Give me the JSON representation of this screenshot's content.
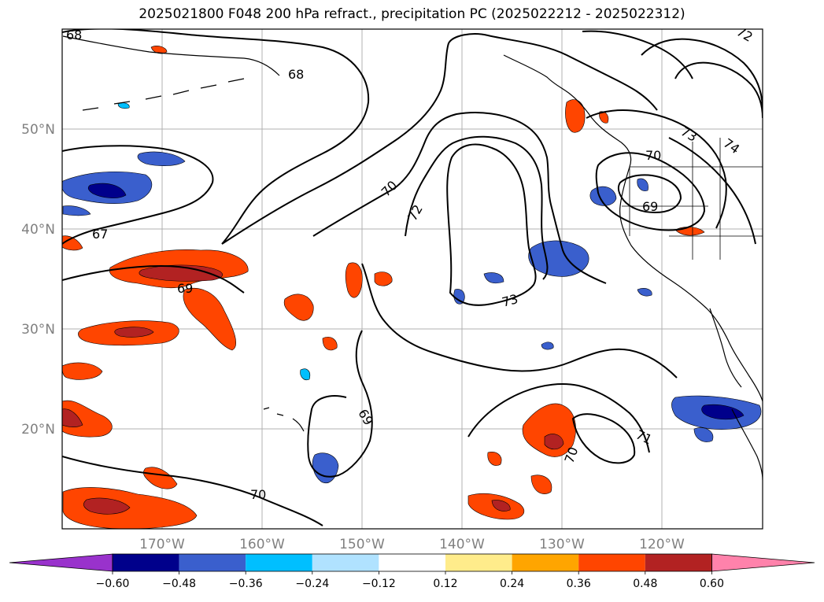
{
  "title": "2025021800 F048 200 hPa refract., precipitation PC (2025022212 - 2025022312)",
  "latitude_labels": [
    "50°N",
    "40°N",
    "30°N",
    "20°N"
  ],
  "longitude_labels": [
    "170°W",
    "160°W",
    "150°W",
    "140°W",
    "130°W",
    "120°W"
  ],
  "contour_labels": [
    "68",
    "68",
    "67",
    "69",
    "70",
    "72",
    "73",
    "70",
    "69",
    "73",
    "74",
    "71",
    "69",
    "70",
    "70",
    "72"
  ],
  "colorbar": {
    "ticks": [
      "−0.60",
      "−0.48",
      "−0.36",
      "−0.24",
      "−0.12",
      "0.12",
      "0.24",
      "0.36",
      "0.48",
      "0.60"
    ],
    "colors": [
      "#9932CC",
      "#00008B",
      "#3A5FCD",
      "#00BFFF",
      "#B0E2FF",
      "#FFFFFF",
      "#FFEC8B",
      "#FFA500",
      "#FF4500",
      "#B22222",
      "#FF82AB"
    ]
  },
  "map": {
    "projection": "Lat-lon",
    "lon_range": [
      "180°W",
      "110°W"
    ],
    "lat_range": [
      "10°N",
      "60°N"
    ],
    "contour_color": "#000000",
    "gridline_color": "#B0B0B0"
  }
}
